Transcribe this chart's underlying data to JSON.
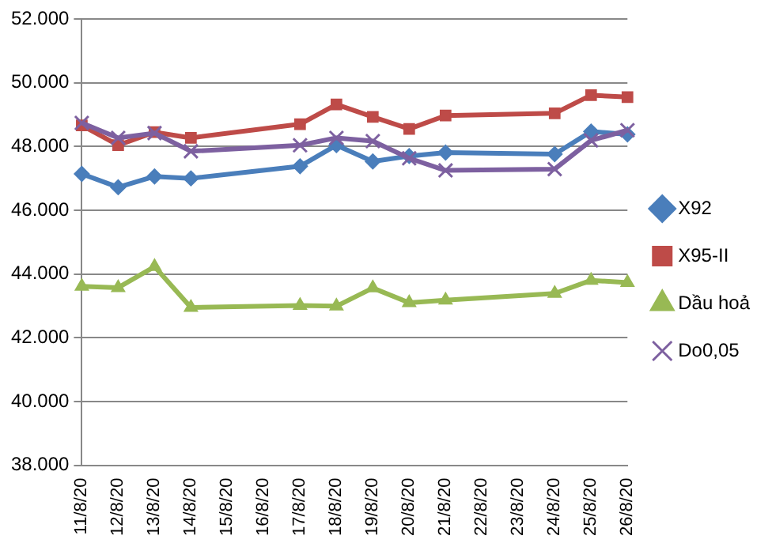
{
  "chart_data": {
    "type": "line",
    "categories": [
      "11/8/20",
      "12/8/20",
      "13/8/20",
      "14/8/20",
      "15/8/20",
      "16/8/20",
      "17/8/20",
      "18/8/20",
      "19/8/20",
      "20/8/20",
      "21/8/20",
      "22/8/20",
      "23/8/20",
      "24/8/20",
      "25/8/20",
      "26/8/20"
    ],
    "series": [
      {
        "name": "X92",
        "color": "#4a7ebb",
        "marker": "diamond",
        "values": [
          47140,
          46720,
          47060,
          47000,
          null,
          null,
          47380,
          48040,
          47530,
          47700,
          47810,
          null,
          null,
          47760,
          48470,
          48380
        ]
      },
      {
        "name": "X95-II",
        "color": "#be4b48",
        "marker": "square",
        "values": [
          48660,
          48040,
          48450,
          48270,
          null,
          null,
          48700,
          49320,
          48930,
          48550,
          48970,
          null,
          null,
          49040,
          49610,
          49550
        ]
      },
      {
        "name": "Dầu hoả",
        "color": "#98b954",
        "marker": "triangle",
        "values": [
          43610,
          43570,
          44230,
          42950,
          null,
          null,
          43010,
          42990,
          43560,
          43100,
          43180,
          null,
          null,
          43390,
          43800,
          43730
        ]
      },
      {
        "name": "Do0,05",
        "color": "#7d60a0",
        "marker": "cross",
        "values": [
          48740,
          48270,
          48420,
          47850,
          null,
          null,
          48040,
          48270,
          48170,
          47630,
          47250,
          null,
          null,
          47290,
          48190,
          48510
        ]
      }
    ],
    "ylim": [
      38000,
      52000
    ],
    "yticks": [
      {
        "value": 38000,
        "label": "38.000"
      },
      {
        "value": 40000,
        "label": "40.000"
      },
      {
        "value": 42000,
        "label": "42.000"
      },
      {
        "value": 44000,
        "label": "44.000"
      },
      {
        "value": 46000,
        "label": "46.000"
      },
      {
        "value": 48000,
        "label": "48.000"
      },
      {
        "value": 50000,
        "label": "50.000"
      },
      {
        "value": 52000,
        "label": "52.000"
      }
    ],
    "grid": "y",
    "legend": "right",
    "line_style": "solid"
  }
}
